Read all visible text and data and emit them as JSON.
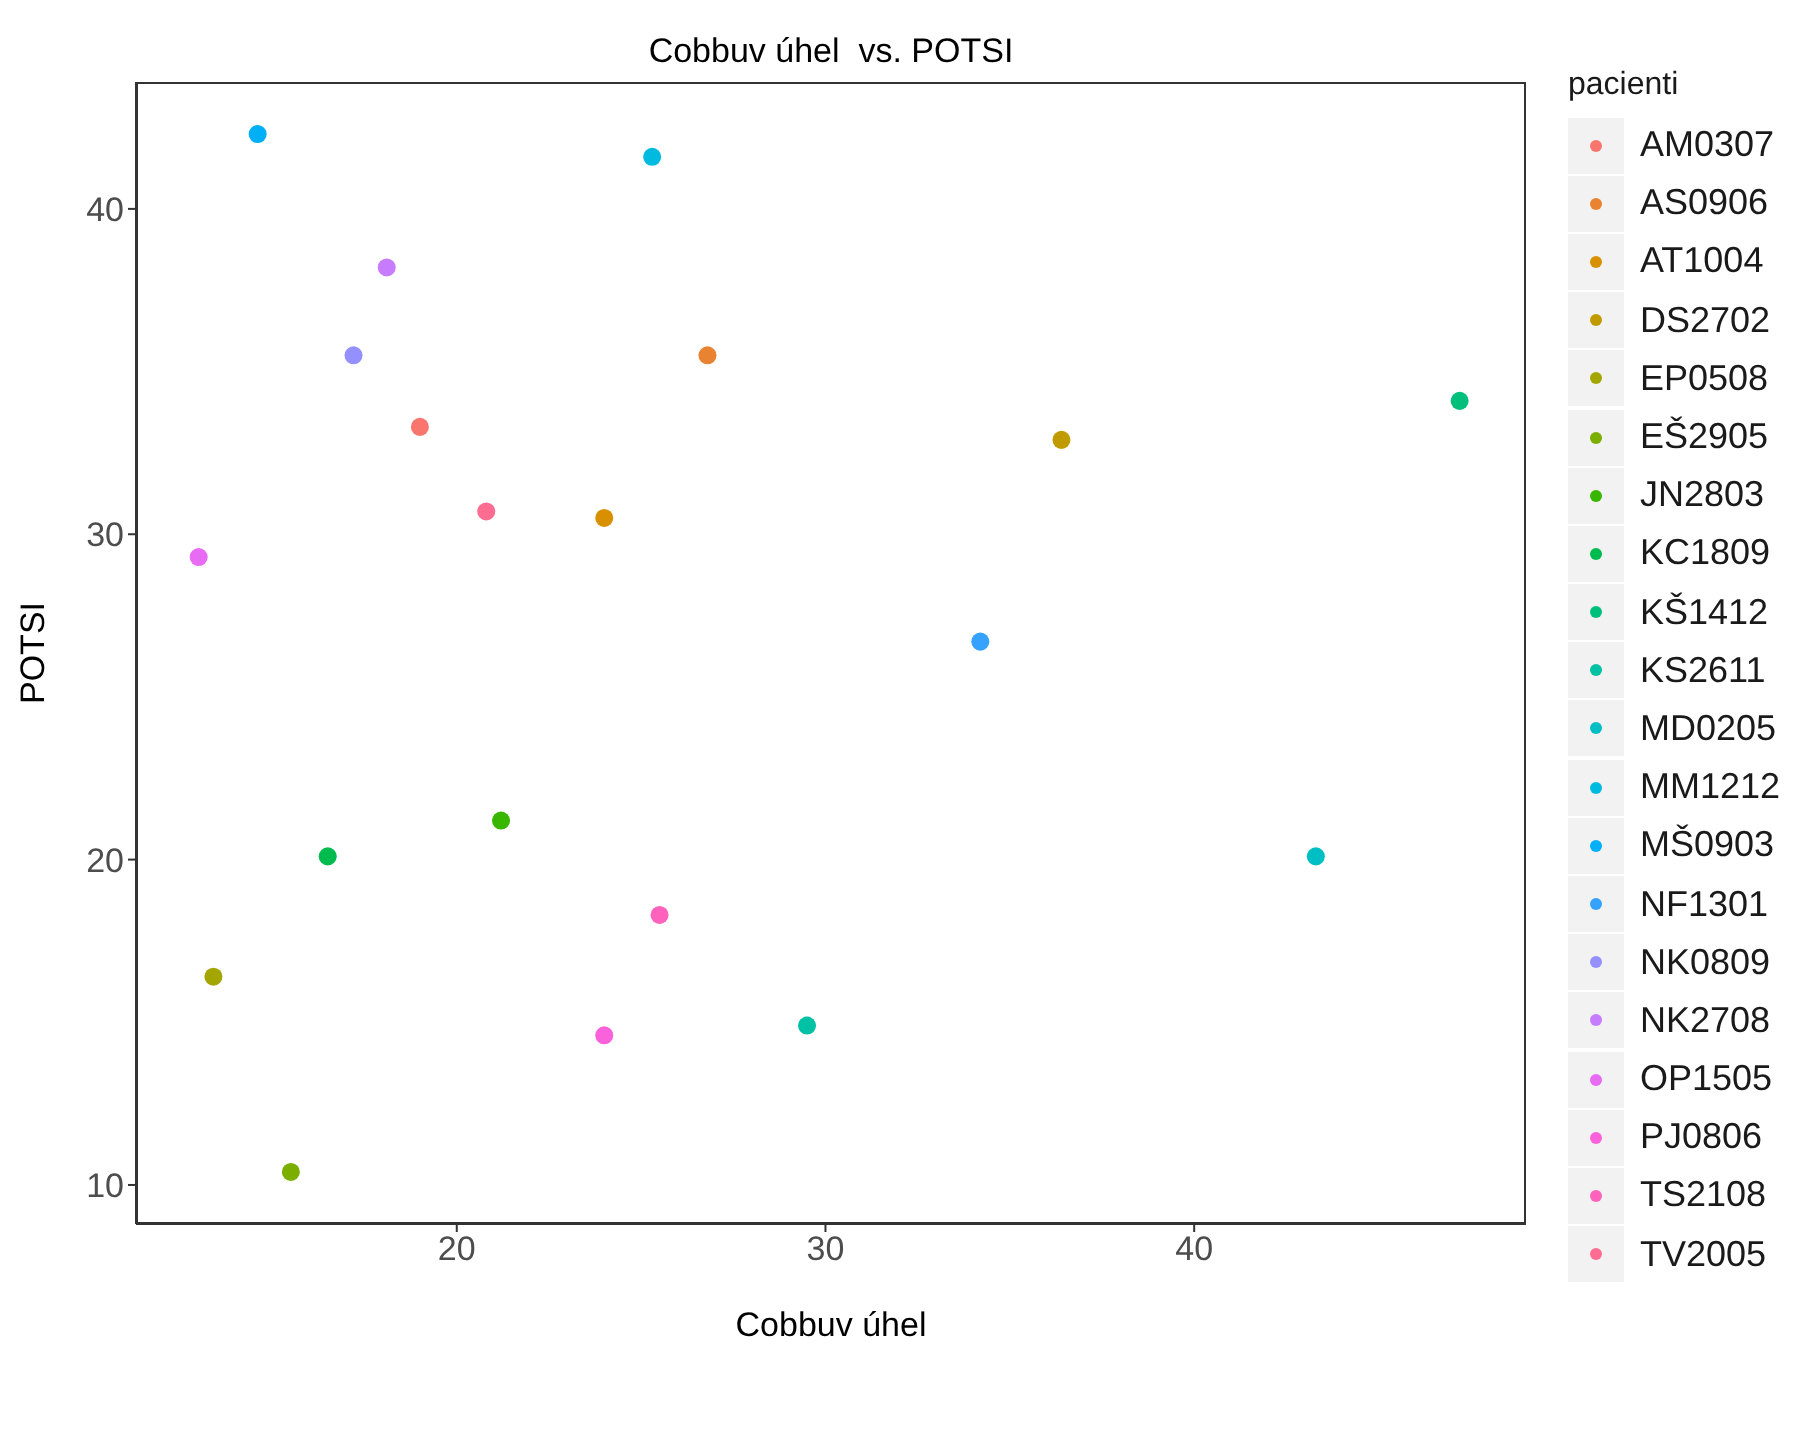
{
  "chart_data": {
    "type": "scatter",
    "title": "Cobbuv úhel  vs. POTSI",
    "xlabel": "Cobbuv úhel",
    "ylabel": "POTSI",
    "legend_title": "pacienti",
    "legend": "right",
    "grid": false,
    "marker": "circle",
    "xlim": [
      11.3,
      49.0
    ],
    "ylim": [
      8.8,
      43.9
    ],
    "xticks": [
      20,
      30,
      40
    ],
    "yticks": [
      10,
      20,
      30,
      40
    ],
    "series": [
      {
        "name": "AM0307",
        "color": "#F8766D",
        "x": [
          19.0
        ],
        "values": [
          33.3
        ]
      },
      {
        "name": "AS0906",
        "color": "#EA8331",
        "x": [
          26.8
        ],
        "values": [
          35.5
        ]
      },
      {
        "name": "AT1004",
        "color": "#D89000",
        "x": [
          24.0
        ],
        "values": [
          30.5
        ]
      },
      {
        "name": "DS2702",
        "color": "#C09B00",
        "x": [
          36.4
        ],
        "values": [
          32.9
        ]
      },
      {
        "name": "EP0508",
        "color": "#A3A500",
        "x": [
          13.4
        ],
        "values": [
          16.4
        ]
      },
      {
        "name": "EŠ2905",
        "color": "#7CAE00",
        "x": [
          15.5
        ],
        "values": [
          10.4
        ]
      },
      {
        "name": "JN2803",
        "color": "#39B600",
        "x": [
          21.2
        ],
        "values": [
          21.2
        ]
      },
      {
        "name": "KC1809",
        "color": "#00BB4E",
        "x": [
          16.5
        ],
        "values": [
          20.1
        ]
      },
      {
        "name": "KŠ1412",
        "color": "#00BF7D",
        "x": [
          47.2
        ],
        "values": [
          34.1
        ]
      },
      {
        "name": "KS2611",
        "color": "#00C1A3",
        "x": [
          29.5
        ],
        "values": [
          14.9
        ]
      },
      {
        "name": "MD0205",
        "color": "#00BFC4",
        "x": [
          43.3
        ],
        "values": [
          20.1
        ]
      },
      {
        "name": "MM1212",
        "color": "#00BAE0",
        "x": [
          25.3
        ],
        "values": [
          41.6
        ]
      },
      {
        "name": "MŠ0903",
        "color": "#00B0F6",
        "x": [
          14.6
        ],
        "values": [
          42.3
        ]
      },
      {
        "name": "NF1301",
        "color": "#35A2FF",
        "x": [
          34.2
        ],
        "values": [
          26.7
        ]
      },
      {
        "name": "NK0809",
        "color": "#9590FF",
        "x": [
          17.2
        ],
        "values": [
          35.5
        ]
      },
      {
        "name": "NK2708",
        "color": "#C77CFF",
        "x": [
          18.1
        ],
        "values": [
          38.2
        ]
      },
      {
        "name": "OP1505",
        "color": "#E76BF3",
        "x": [
          13.0
        ],
        "values": [
          29.3
        ]
      },
      {
        "name": "PJ0806",
        "color": "#FA62DB",
        "x": [
          24.0
        ],
        "values": [
          14.6
        ]
      },
      {
        "name": "TS2108",
        "color": "#FF62BC",
        "x": [
          25.5
        ],
        "values": [
          18.3
        ]
      },
      {
        "name": "TV2005",
        "color": "#FF6C91",
        "x": [
          20.8
        ],
        "values": [
          30.7
        ]
      }
    ]
  }
}
